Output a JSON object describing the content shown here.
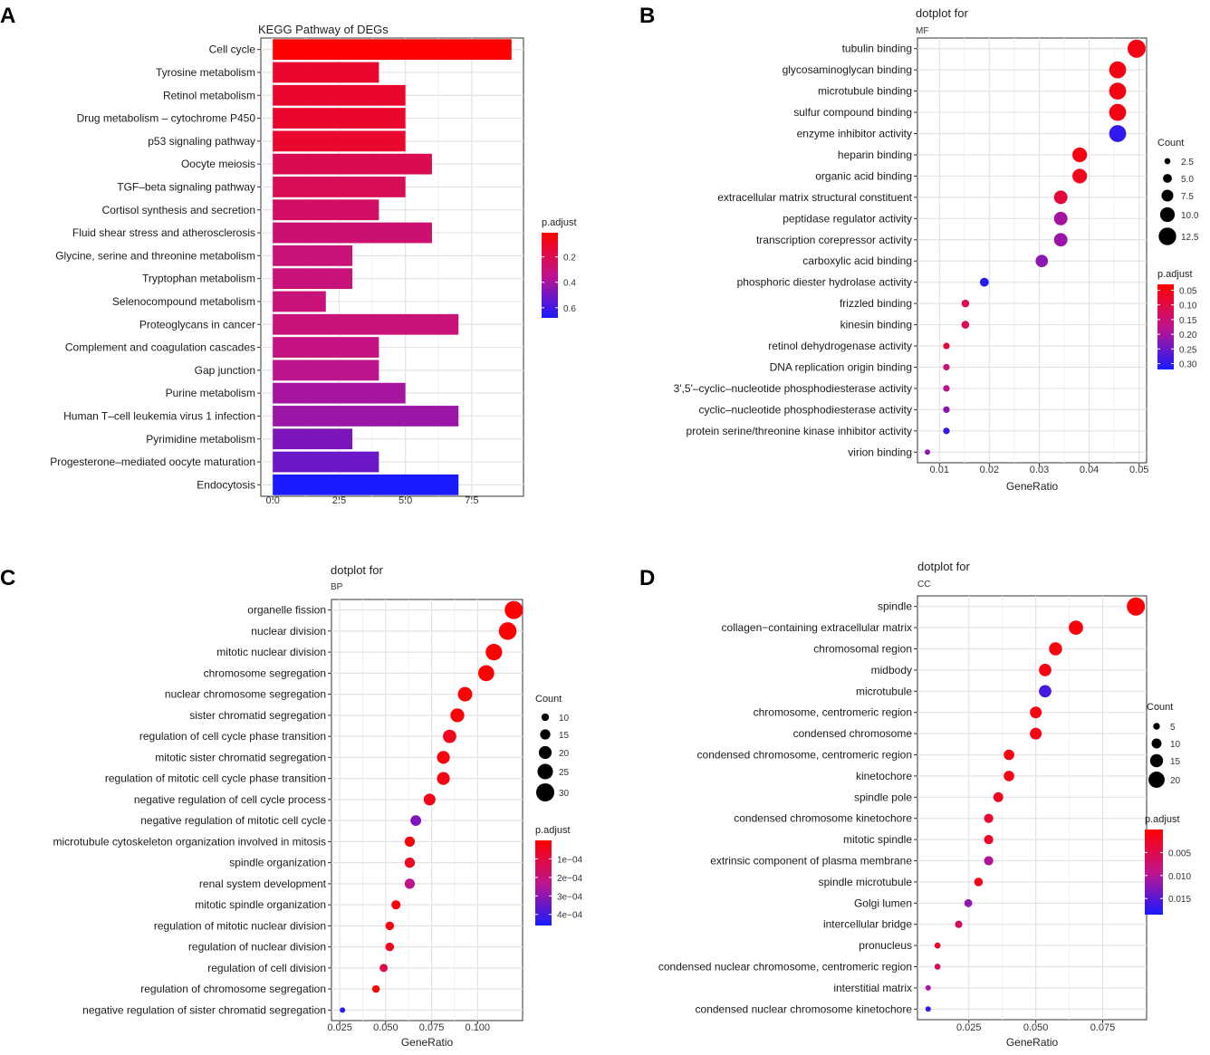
{
  "chart_data": [
    {
      "panel": "A",
      "type": "bar",
      "title": "KEGG Pathway of DEGs",
      "categories": [
        "Cell cycle",
        "Tyrosine metabolism",
        "Retinol metabolism",
        "Drug metabolism – cytochrome P450",
        "p53 signaling pathway",
        "Oocyte meiosis",
        "TGF–beta signaling pathway",
        "Cortisol synthesis and secretion",
        "Fluid shear stress and atherosclerosis",
        "Glycine, serine and threonine metabolism",
        "Tryptophan metabolism",
        "Selenocompound metabolism",
        "Proteoglycans in cancer",
        "Complement and coagulation cascades",
        "Gap junction",
        "Purine metabolism",
        "Human T–cell leukemia virus 1 infection",
        "Pyrimidine metabolism",
        "Progesterone–mediated oocyte maturation",
        "Endocytosis"
      ],
      "values": [
        9,
        4,
        5,
        5,
        5,
        6,
        5,
        4,
        6,
        3,
        3,
        2,
        7,
        4,
        4,
        5,
        7,
        3,
        4,
        7
      ],
      "padjust": [
        0.01,
        0.12,
        0.12,
        0.12,
        0.12,
        0.2,
        0.22,
        0.25,
        0.28,
        0.3,
        0.3,
        0.3,
        0.3,
        0.32,
        0.35,
        0.4,
        0.42,
        0.48,
        0.52,
        0.68
      ],
      "xlim": [
        -0.45,
        9.45
      ],
      "xticks": [
        0,
        2.5,
        5,
        7.5
      ],
      "xtick_labels": [
        "0.0",
        "2.5",
        "5.0",
        "7.5"
      ],
      "xlabel": "",
      "ylabel": "",
      "color_legend": {
        "title": "p.adjust",
        "range": [
          0.01,
          0.68
        ],
        "ticks": [
          0.2,
          0.4,
          0.6
        ],
        "tick_labels": [
          "0.2",
          "0.4",
          "0.6"
        ],
        "low_color": "#ff0000",
        "high_color": "#0000ff"
      }
    },
    {
      "panel": "B",
      "type": "scatter",
      "title": "dotplot for",
      "subtitle": "MF",
      "categories": [
        "tubulin binding",
        "glycosaminoglycan binding",
        "microtubule binding",
        "sulfur compound binding",
        "enzyme inhibitor activity",
        "heparin binding",
        "organic acid binding",
        "extracellular matrix structural constituent",
        "peptidase regulator activity",
        "transcription corepressor activity",
        "carboxylic acid binding",
        "phosphoric diester hydrolase activity",
        "frizzled binding",
        "kinesin binding",
        "retinol dehydrogenase activity",
        "DNA replication origin binding",
        "3',5'–cyclic–nucleotide phosphodiesterase activity",
        "cyclic–nucleotide phosphodiesterase activity",
        "protein serine/threonine kinase inhibitor activity",
        "virion binding"
      ],
      "gene_ratio": [
        0.0495,
        0.0457,
        0.0457,
        0.0457,
        0.0457,
        0.0381,
        0.0381,
        0.0343,
        0.0343,
        0.0343,
        0.0305,
        0.019,
        0.0152,
        0.0152,
        0.0114,
        0.0114,
        0.0114,
        0.0114,
        0.0114,
        0.0076
      ],
      "count": [
        13,
        12,
        12,
        12,
        12,
        10,
        10,
        9,
        9,
        9,
        8,
        5,
        4,
        4,
        3,
        3,
        3,
        3,
        3,
        2
      ],
      "padjust": [
        0.05,
        0.05,
        0.05,
        0.05,
        0.3,
        0.05,
        0.06,
        0.09,
        0.2,
        0.21,
        0.22,
        0.31,
        0.11,
        0.12,
        0.09,
        0.15,
        0.18,
        0.22,
        0.29,
        0.22
      ],
      "xlim": [
        0.0056,
        0.0515
      ],
      "xticks": [
        0.01,
        0.02,
        0.03,
        0.04,
        0.05
      ],
      "xtick_labels": [
        "0.01",
        "0.02",
        "0.03",
        "0.04",
        "0.05"
      ],
      "xlabel": "GeneRatio",
      "ylabel": "",
      "size_legend": {
        "title": "Count",
        "values": [
          2.5,
          5,
          7.5,
          10,
          12.5
        ],
        "labels": [
          "2.5",
          "5.0",
          "7.5",
          "10.0",
          "12.5"
        ]
      },
      "color_legend": {
        "title": "p.adjust",
        "range": [
          0.03,
          0.32
        ],
        "ticks": [
          0.05,
          0.1,
          0.15,
          0.2,
          0.25,
          0.3
        ],
        "tick_labels": [
          "0.05",
          "0.10",
          "0.15",
          "0.20",
          "0.25",
          "0.30"
        ],
        "low_color": "#ff0000",
        "high_color": "#0000ff"
      }
    },
    {
      "panel": "C",
      "type": "scatter",
      "title": "dotplot for",
      "subtitle": "BP",
      "categories": [
        "organelle fission",
        "nuclear division",
        "mitotic nuclear division",
        "chromosome segregation",
        "nuclear chromosome segregation",
        "sister chromatid segregation",
        "regulation of cell cycle phase transition",
        "mitotic sister chromatid segregation",
        "regulation of mitotic cell cycle phase transition",
        "negative regulation of cell cycle process",
        "negative regulation of mitotic cell cycle",
        "microtubule cytoskeleton organization involved in mitosis",
        "spindle organization",
        "renal system development",
        "mitotic spindle organization",
        "regulation of mitotic nuclear division",
        "regulation of nuclear division",
        "regulation of cell division",
        "regulation of chromosome segregation",
        "negative regulation of sister chromatid segregation"
      ],
      "gene_ratio": [
        0.1197,
        0.1164,
        0.1089,
        0.1047,
        0.0932,
        0.089,
        0.0848,
        0.0814,
        0.0814,
        0.0739,
        0.0664,
        0.0631,
        0.0631,
        0.0631,
        0.0556,
        0.0522,
        0.0522,
        0.0489,
        0.0447,
        0.0265
      ],
      "count": [
        30,
        29,
        27,
        26,
        23,
        22,
        21,
        20,
        20,
        18,
        16,
        15,
        15,
        15,
        13,
        12,
        12,
        11,
        10,
        6
      ],
      "padjust": [
        2e-06,
        2e-06,
        3e-06,
        5e-06,
        8e-06,
        1e-05,
        5e-05,
        2e-05,
        3e-05,
        4e-05,
        0.00032,
        2e-05,
        5e-05,
        0.00023,
        2e-05,
        3e-05,
        5e-05,
        0.00012,
        1e-05,
        0.00044
      ],
      "xlim": [
        0.0205,
        0.1245
      ],
      "xticks": [
        0.025,
        0.05,
        0.075,
        0.1
      ],
      "xtick_labels": [
        "0.025",
        "0.050",
        "0.075",
        "0.100"
      ],
      "xlabel": "GeneRatio",
      "ylabel": "",
      "size_legend": {
        "title": "Count",
        "values": [
          10,
          15,
          20,
          25,
          30
        ],
        "labels": [
          "10",
          "15",
          "20",
          "25",
          "30"
        ]
      },
      "color_legend": {
        "title": "p.adjust",
        "range": [
          0.0,
          0.00046
        ],
        "ticks": [
          0.0001,
          0.0002,
          0.0003,
          0.0004
        ],
        "tick_labels": [
          "1e−04",
          "2e−04",
          "3e−04",
          "4e−04"
        ],
        "low_color": "#ff0000",
        "high_color": "#0000ff"
      }
    },
    {
      "panel": "D",
      "type": "scatter",
      "title": "dotplot for",
      "subtitle": "CC",
      "categories": [
        "spindle",
        "collagen−containing extracellular matrix",
        "chromosomal region",
        "midbody",
        "microtubule",
        "chromosome, centromeric region",
        "condensed chromosome",
        "condensed chromosome, centromeric region",
        "kinetochore",
        "spindle pole",
        "condensed chromosome kinetochore",
        "mitotic spindle",
        "extrinsic component of plasma membrane",
        "spindle microtubule",
        "Golgi lumen",
        "intercellular bridge",
        "pronucleus",
        "condensed nuclear chromosome, centromeric region",
        "interstitial matrix",
        "condensed nuclear chromosome kinetochore"
      ],
      "gene_ratio": [
        0.0874,
        0.065,
        0.0574,
        0.0535,
        0.0535,
        0.05,
        0.05,
        0.04,
        0.04,
        0.036,
        0.0324,
        0.0324,
        0.0324,
        0.0286,
        0.0248,
        0.0212,
        0.0133,
        0.0133,
        0.0098,
        0.0098
      ],
      "count": [
        23,
        17,
        15,
        14,
        14,
        13,
        13,
        11,
        11,
        10,
        9,
        9,
        9,
        8,
        7,
        6,
        4,
        4,
        3,
        3
      ],
      "padjust": [
        0.0005,
        0.0008,
        0.001,
        0.0012,
        0.016,
        0.001,
        0.0012,
        0.0012,
        0.0013,
        0.002,
        0.003,
        0.0025,
        0.01,
        0.0015,
        0.012,
        0.006,
        0.003,
        0.006,
        0.01,
        0.017
      ],
      "xlim": [
        0.0058,
        0.0914
      ],
      "xticks": [
        0.025,
        0.05,
        0.075
      ],
      "xtick_labels": [
        "0.025",
        "0.050",
        "0.075"
      ],
      "xlabel": "GeneRatio",
      "ylabel": "",
      "size_legend": {
        "title": "Count",
        "values": [
          5,
          10,
          15,
          20
        ],
        "labels": [
          "5",
          "10",
          "15",
          "20"
        ]
      },
      "color_legend": {
        "title": "p.adjust",
        "range": [
          0.0,
          0.0185
        ],
        "ticks": [
          0.005,
          0.01,
          0.015
        ],
        "tick_labels": [
          "0.005",
          "0.010",
          "0.015"
        ],
        "low_color": "#ff0000",
        "high_color": "#0000ff"
      }
    }
  ]
}
